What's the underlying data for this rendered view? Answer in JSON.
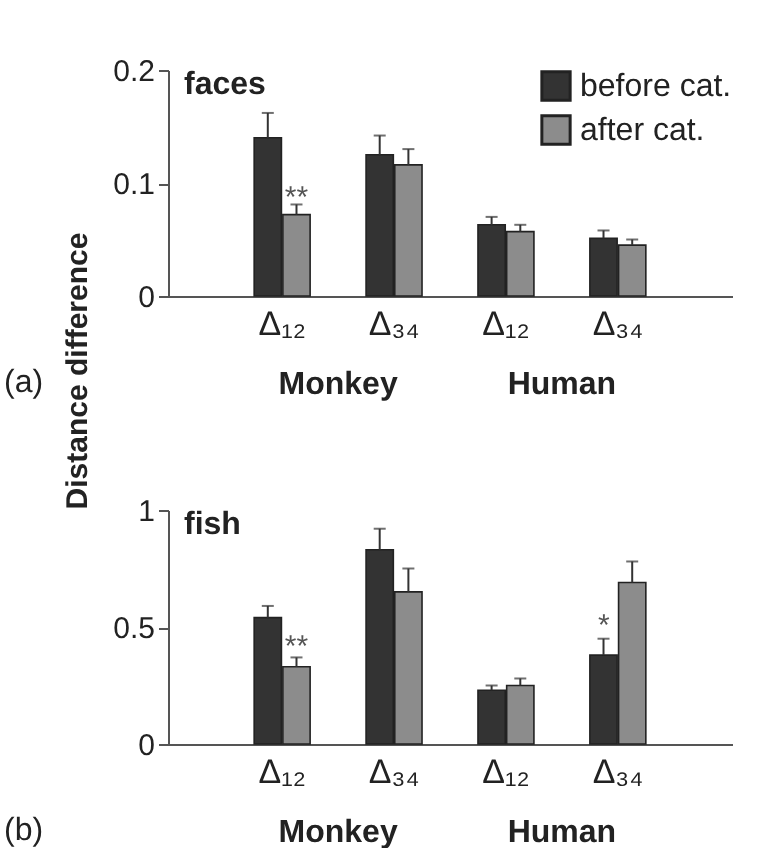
{
  "chart_data": [
    {
      "type": "bar",
      "title": "faces",
      "ylabel": "Distance difference",
      "categories": [
        "Δ₁₂",
        "Δ₃₄",
        "Δ₁₂",
        "Δ₃₄"
      ],
      "legend": "top right",
      "ylim": [
        0,
        0.2
      ],
      "yticks": [
        0,
        0.1,
        0.2
      ],
      "grid": false,
      "series": [
        {
          "name": "before cat.",
          "color": "#333333",
          "values": [
            0.14,
            0.125,
            0.063,
            0.051
          ],
          "errors": [
            [
              0.14,
              0.162
            ],
            [
              0.125,
              0.142
            ],
            [
              0.063,
              0.07
            ],
            [
              0.051,
              0.058
            ]
          ]
        },
        {
          "name": "after cat.",
          "color": "#8c8c8c",
          "values": [
            0.072,
            0.116,
            0.057,
            0.045
          ],
          "errors": [
            [
              0.072,
              0.081
            ],
            [
              0.116,
              0.13
            ],
            [
              0.057,
              0.063
            ],
            [
              0.045,
              0.05
            ]
          ]
        }
      ],
      "annotations": [
        "(a)",
        "Monkey",
        "Human",
        {
          "text": "**",
          "x": "Δ₁₂",
          "y": 0.088
        }
      ]
    },
    {
      "type": "bar",
      "title": "fish",
      "categories": [
        "Δ₁₂",
        "Δ₃₄",
        "Δ₁₂",
        "Δ₃₄"
      ],
      "ylim": [
        0,
        1
      ],
      "yticks": [
        0,
        0.5,
        1
      ],
      "grid": false,
      "series": [
        {
          "color": "#333333",
          "values": [
            0.54,
            0.83,
            0.23,
            0.38
          ],
          "errors": [
            [
              0.54,
              0.59
            ],
            [
              0.83,
              0.92
            ],
            [
              0.23,
              0.25
            ],
            [
              0.38,
              0.45
            ]
          ]
        },
        {
          "color": "#8c8c8c",
          "values": [
            0.33,
            0.65,
            0.25,
            0.69
          ],
          "errors": [
            [
              0.33,
              0.37
            ],
            [
              0.65,
              0.75
            ],
            [
              0.25,
              0.28
            ],
            [
              0.69,
              0.78
            ]
          ]
        }
      ],
      "annotations": [
        "(b)",
        "Monkey",
        "Human",
        {
          "text": "**",
          "x": "Δ₁₂",
          "y": 0.42
        },
        "*"
      ]
    }
  ]
}
